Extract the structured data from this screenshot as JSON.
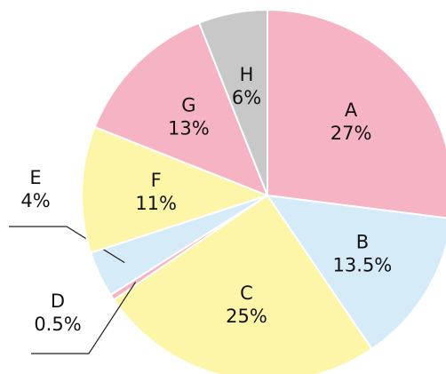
{
  "chart_data": {
    "type": "pie",
    "categories": [
      "A",
      "B",
      "C",
      "D",
      "E",
      "F",
      "G",
      "H"
    ],
    "values": [
      27,
      13.5,
      25,
      0.5,
      4,
      11,
      13,
      6
    ],
    "value_labels": [
      "27%",
      "13.5%",
      "25%",
      "0.5%",
      "4%",
      "11%",
      "13%",
      "6%"
    ],
    "colors": [
      "#f5b3c3",
      "#d5ebf8",
      "#fdf6a8",
      "#f5b3c3",
      "#d5ebf8",
      "#fdf6a8",
      "#f5b3c3",
      "#c8c8c8"
    ]
  }
}
